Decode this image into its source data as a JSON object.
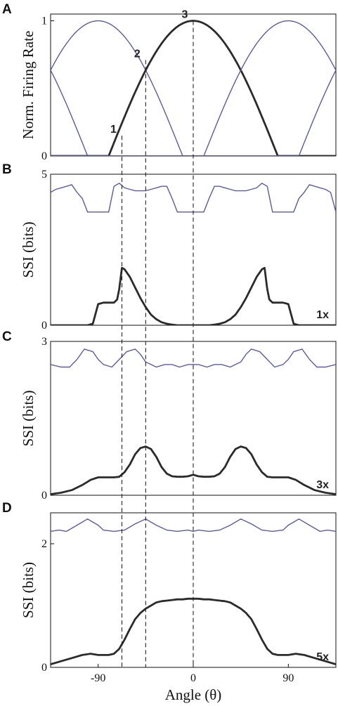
{
  "chart_data": [
    {
      "panel": "A",
      "type": "line",
      "ylabel": "Norm. Firing Rate",
      "xlim": [
        -135,
        135
      ],
      "ylim": [
        0,
        1.05
      ],
      "yticks": [
        "0",
        "1"
      ],
      "ytick_values": [
        0,
        1
      ],
      "markers": [
        {
          "label": "1",
          "x": -67.5,
          "y": 0.15
        },
        {
          "label": "2",
          "x": -45,
          "y": 0.71
        },
        {
          "label": "3",
          "x": 0,
          "y": 1.0
        }
      ],
      "tuning": {
        "preferred": [
          -180,
          -90,
          0,
          90,
          180
        ],
        "width": 80,
        "highlight_preferred": 0
      }
    },
    {
      "panel": "B",
      "type": "line",
      "ylabel": "SSI (bits)",
      "gain_label": "1x",
      "xlim": [
        -135,
        135
      ],
      "ylim": [
        0,
        5
      ],
      "yticks": [
        "0",
        "5"
      ],
      "ytick_values": [
        0,
        5
      ],
      "series": [
        {
          "color": "#5a5aa6",
          "x": [
            -135,
            -130,
            -125,
            -120,
            -115,
            -110,
            -105,
            -100,
            -95,
            -90,
            -85,
            -80,
            -75,
            -70,
            -65,
            -60,
            -55,
            -50,
            -45,
            -40,
            -35,
            -30,
            -25,
            -20,
            -15,
            -10,
            -5,
            0,
            5,
            10,
            15,
            20,
            25,
            30,
            35,
            40,
            45,
            50,
            55,
            60,
            65,
            70,
            75,
            80,
            85,
            90,
            95,
            100,
            105,
            110,
            115,
            120,
            125,
            130,
            135
          ],
          "values": [
            4.4,
            4.5,
            4.55,
            4.6,
            4.65,
            4.4,
            4.2,
            3.75,
            3.75,
            3.75,
            3.75,
            3.75,
            4.6,
            4.7,
            4.55,
            4.5,
            4.45,
            4.45,
            4.45,
            4.5,
            4.55,
            4.6,
            4.6,
            4.2,
            3.75,
            3.75,
            3.75,
            3.75,
            3.75,
            3.75,
            4.2,
            4.6,
            4.6,
            4.55,
            4.5,
            4.45,
            4.45,
            4.45,
            4.5,
            4.55,
            4.7,
            4.6,
            3.75,
            3.75,
            3.75,
            3.75,
            3.75,
            4.2,
            4.4,
            4.65,
            4.6,
            4.55,
            4.5,
            4.4,
            3.75
          ]
        },
        {
          "color": "#2b2b2b",
          "x": [
            -135,
            -120,
            -110,
            -105,
            -100,
            -95,
            -90,
            -85,
            -80,
            -75,
            -72,
            -70,
            -67.5,
            -65,
            -60,
            -55,
            -50,
            -45,
            -40,
            -35,
            -30,
            -25,
            -20,
            -15,
            -10,
            -5,
            0,
            5,
            10,
            15,
            20,
            25,
            30,
            35,
            40,
            45,
            50,
            55,
            60,
            65,
            67.5,
            70,
            72,
            75,
            80,
            85,
            90,
            95,
            100,
            105,
            110,
            120,
            135
          ],
          "values": [
            0,
            0,
            0,
            0,
            0,
            0.05,
            0.7,
            0.75,
            0.75,
            0.75,
            0.85,
            1.2,
            1.9,
            1.85,
            1.6,
            1.25,
            0.9,
            0.6,
            0.35,
            0.2,
            0.1,
            0.05,
            0.02,
            0,
            0,
            0,
            0,
            0,
            0,
            0,
            0.02,
            0.05,
            0.1,
            0.2,
            0.35,
            0.6,
            0.9,
            1.25,
            1.6,
            1.85,
            1.9,
            1.2,
            0.85,
            0.75,
            0.75,
            0.75,
            0.7,
            0.05,
            0,
            0,
            0,
            0,
            0
          ]
        }
      ]
    },
    {
      "panel": "C",
      "type": "line",
      "ylabel": "SSI (bits)",
      "gain_label": "3x",
      "xlim": [
        -135,
        135
      ],
      "ylim": [
        0,
        3
      ],
      "yticks": [
        "0",
        "3"
      ],
      "ytick_values": [
        0,
        3
      ],
      "series": [
        {
          "color": "#5a5aa6",
          "x": [
            -135,
            -125,
            -117,
            -110,
            -103,
            -95,
            -90,
            -85,
            -77,
            -70,
            -63,
            -55,
            -50,
            -45,
            -40,
            -35,
            -27,
            -20,
            -13,
            -5,
            0,
            5,
            13,
            20,
            27,
            35,
            40,
            45,
            50,
            55,
            63,
            70,
            77,
            85,
            90,
            95,
            103,
            110,
            117,
            125,
            135
          ],
          "values": [
            2.55,
            2.5,
            2.5,
            2.65,
            2.85,
            2.8,
            2.65,
            2.55,
            2.5,
            2.65,
            2.8,
            2.85,
            2.75,
            2.6,
            2.55,
            2.5,
            2.55,
            2.55,
            2.5,
            2.55,
            2.55,
            2.55,
            2.5,
            2.55,
            2.55,
            2.5,
            2.55,
            2.6,
            2.75,
            2.85,
            2.8,
            2.65,
            2.5,
            2.55,
            2.65,
            2.8,
            2.85,
            2.65,
            2.5,
            2.5,
            2.55
          ]
        },
        {
          "color": "#2b2b2b",
          "x": [
            -135,
            -125,
            -115,
            -105,
            -97,
            -90,
            -85,
            -80,
            -75,
            -70,
            -65,
            -60,
            -55,
            -50,
            -45,
            -40,
            -35,
            -30,
            -25,
            -20,
            -15,
            -10,
            -5,
            0,
            5,
            10,
            15,
            20,
            25,
            30,
            35,
            40,
            45,
            50,
            55,
            60,
            65,
            70,
            75,
            80,
            85,
            90,
            97,
            105,
            115,
            125,
            135
          ],
          "values": [
            0.02,
            0.05,
            0.1,
            0.2,
            0.3,
            0.35,
            0.35,
            0.35,
            0.35,
            0.36,
            0.45,
            0.6,
            0.8,
            0.92,
            0.95,
            0.9,
            0.75,
            0.55,
            0.42,
            0.37,
            0.36,
            0.36,
            0.37,
            0.4,
            0.37,
            0.36,
            0.36,
            0.37,
            0.42,
            0.55,
            0.75,
            0.9,
            0.95,
            0.92,
            0.8,
            0.6,
            0.45,
            0.36,
            0.35,
            0.35,
            0.35,
            0.35,
            0.3,
            0.2,
            0.1,
            0.05,
            0.02
          ]
        }
      ]
    },
    {
      "panel": "D",
      "type": "line",
      "ylabel": "SSI (bits)",
      "gain_label": "5x",
      "xlim": [
        -135,
        135
      ],
      "xlabel": "Angle (θ)",
      "xticks": [
        "-90",
        "0",
        "90"
      ],
      "xtick_values": [
        -90,
        0,
        90
      ],
      "ylim": [
        0,
        2.5
      ],
      "yticks": [
        "0",
        "2"
      ],
      "ytick_values": [
        0,
        2
      ],
      "series": [
        {
          "color": "#5a5aa6",
          "x": [
            -135,
            -127,
            -120,
            -110,
            -100,
            -90,
            -85,
            -75,
            -65,
            -55,
            -45,
            -35,
            -25,
            -15,
            -5,
            0,
            5,
            15,
            25,
            35,
            45,
            55,
            65,
            75,
            85,
            90,
            100,
            110,
            120,
            127,
            135
          ],
          "values": [
            2.2,
            2.22,
            2.2,
            2.3,
            2.4,
            2.3,
            2.22,
            2.2,
            2.22,
            2.32,
            2.4,
            2.3,
            2.22,
            2.2,
            2.22,
            2.2,
            2.22,
            2.2,
            2.22,
            2.3,
            2.4,
            2.32,
            2.22,
            2.2,
            2.22,
            2.3,
            2.4,
            2.3,
            2.2,
            2.22,
            2.2
          ]
        },
        {
          "color": "#2b2b2b",
          "x": [
            -135,
            -125,
            -115,
            -105,
            -97,
            -90,
            -85,
            -80,
            -75,
            -70,
            -65,
            -60,
            -55,
            -50,
            -45,
            -40,
            -35,
            -30,
            -25,
            -20,
            -15,
            -10,
            -5,
            0,
            5,
            10,
            15,
            20,
            25,
            30,
            35,
            40,
            45,
            50,
            55,
            60,
            65,
            70,
            75,
            80,
            85,
            90,
            97,
            105,
            115,
            125,
            135
          ],
          "values": [
            0.05,
            0.1,
            0.15,
            0.2,
            0.22,
            0.2,
            0.2,
            0.2,
            0.22,
            0.3,
            0.45,
            0.62,
            0.78,
            0.88,
            0.95,
            1.0,
            1.05,
            1.07,
            1.08,
            1.09,
            1.1,
            1.1,
            1.11,
            1.11,
            1.11,
            1.1,
            1.1,
            1.09,
            1.08,
            1.07,
            1.05,
            1.0,
            0.95,
            0.88,
            0.78,
            0.62,
            0.45,
            0.3,
            0.22,
            0.2,
            0.2,
            0.2,
            0.22,
            0.2,
            0.15,
            0.1,
            0.05
          ]
        }
      ]
    }
  ],
  "reference_lines_x": [
    -67.5,
    -45,
    0
  ]
}
